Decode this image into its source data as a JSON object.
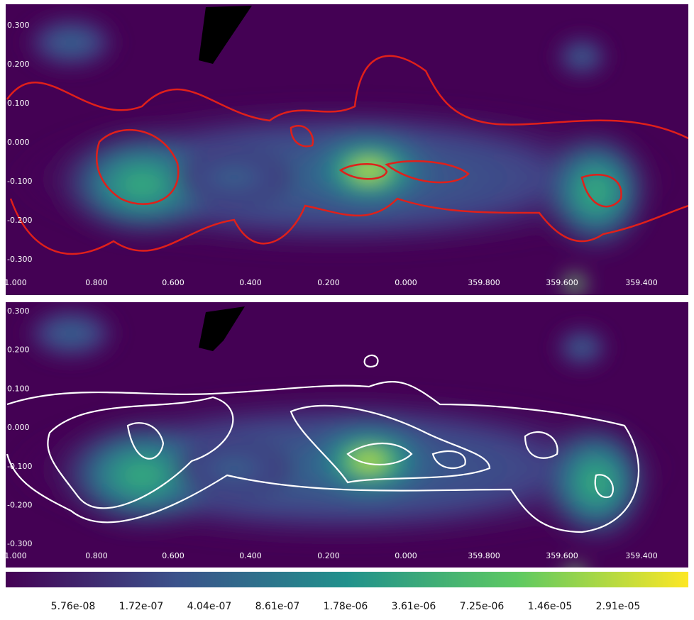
{
  "panels": [
    {
      "y_ticks": [
        "0.300",
        "0.200",
        "0.100",
        "0.000",
        "-0.100",
        "-0.200",
        "-0.300"
      ],
      "x_ticks": [
        "1.000",
        "0.800",
        "0.600",
        "0.400",
        "0.200",
        "0.000",
        "359.800",
        "359.600",
        "359.400"
      ]
    },
    {
      "y_ticks": [
        "0.300",
        "0.200",
        "0.100",
        "0.000",
        "-0.100",
        "-0.200",
        "-0.300"
      ],
      "x_ticks": [
        "1.000",
        "0.800",
        "0.600",
        "0.400",
        "0.200",
        "0.000",
        "359.800",
        "359.600",
        "359.400"
      ]
    }
  ],
  "colorbar": {
    "labels": [
      "5.76e-08",
      "1.72e-07",
      "4.04e-07",
      "8.61e-07",
      "1.78e-06",
      "3.61e-06",
      "7.25e-06",
      "1.46e-05",
      "2.91e-05"
    ]
  }
}
